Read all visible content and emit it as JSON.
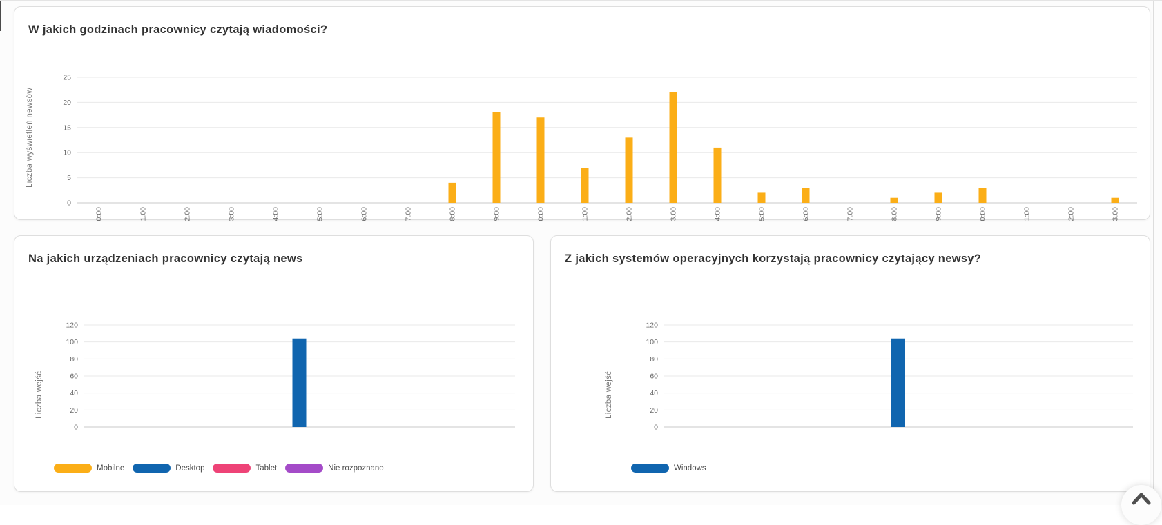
{
  "page": {
    "scroll_top_button": {
      "icon": "chevron-up"
    }
  },
  "chart_data": [
    {
      "type": "bar",
      "title": "W jakich godzinach pracownicy czytają wiadomości?",
      "xlabel": "",
      "ylabel": "Liczba wyświetleń newsów",
      "categories": [
        "0:00",
        "1:00",
        "2:00",
        "3:00",
        "4:00",
        "5:00",
        "6:00",
        "7:00",
        "8:00",
        "9:00",
        "10:00",
        "11:00",
        "12:00",
        "13:00",
        "14:00",
        "15:00",
        "16:00",
        "17:00",
        "18:00",
        "19:00",
        "20:00",
        "21:00",
        "22:00",
        "23:00"
      ],
      "values": [
        0,
        0,
        0,
        0,
        0,
        0,
        0,
        0,
        4,
        18,
        17,
        7,
        13,
        22,
        11,
        2,
        3,
        0,
        1,
        2,
        3,
        0,
        0,
        1
      ],
      "ylim": [
        0,
        25
      ],
      "yticks": [
        0,
        5,
        10,
        15,
        20,
        25
      ],
      "bar_color": "#FBAE17",
      "grid": true,
      "legend_position": "none"
    },
    {
      "type": "bar",
      "title": "Na jakich urządzeniach pracownicy czytają news",
      "xlabel": "",
      "ylabel": "Liczba wejść",
      "categories": [
        ""
      ],
      "series": [
        {
          "name": "Mobilne",
          "color": "#FBAE17",
          "values": [
            0
          ]
        },
        {
          "name": "Desktop",
          "color": "#1065AF",
          "values": [
            104
          ]
        },
        {
          "name": "Tablet",
          "color": "#EE4377",
          "values": [
            0
          ]
        },
        {
          "name": "Nie rozpoznano",
          "color": "#A44BC8",
          "values": [
            0
          ]
        }
      ],
      "ylim": [
        0,
        120
      ],
      "yticks": [
        0,
        20,
        40,
        60,
        80,
        100,
        120
      ],
      "grid": true,
      "legend_position": "bottom"
    },
    {
      "type": "bar",
      "title": "Z jakich systemów operacyjnych korzystają pracownicy czytający newsy?",
      "xlabel": "",
      "ylabel": "Liczba wejść",
      "categories": [
        ""
      ],
      "series": [
        {
          "name": "Windows",
          "color": "#1065AF",
          "values": [
            104
          ]
        }
      ],
      "ylim": [
        0,
        120
      ],
      "yticks": [
        0,
        20,
        40,
        60,
        80,
        100,
        120
      ],
      "grid": true,
      "legend_position": "bottom"
    }
  ]
}
